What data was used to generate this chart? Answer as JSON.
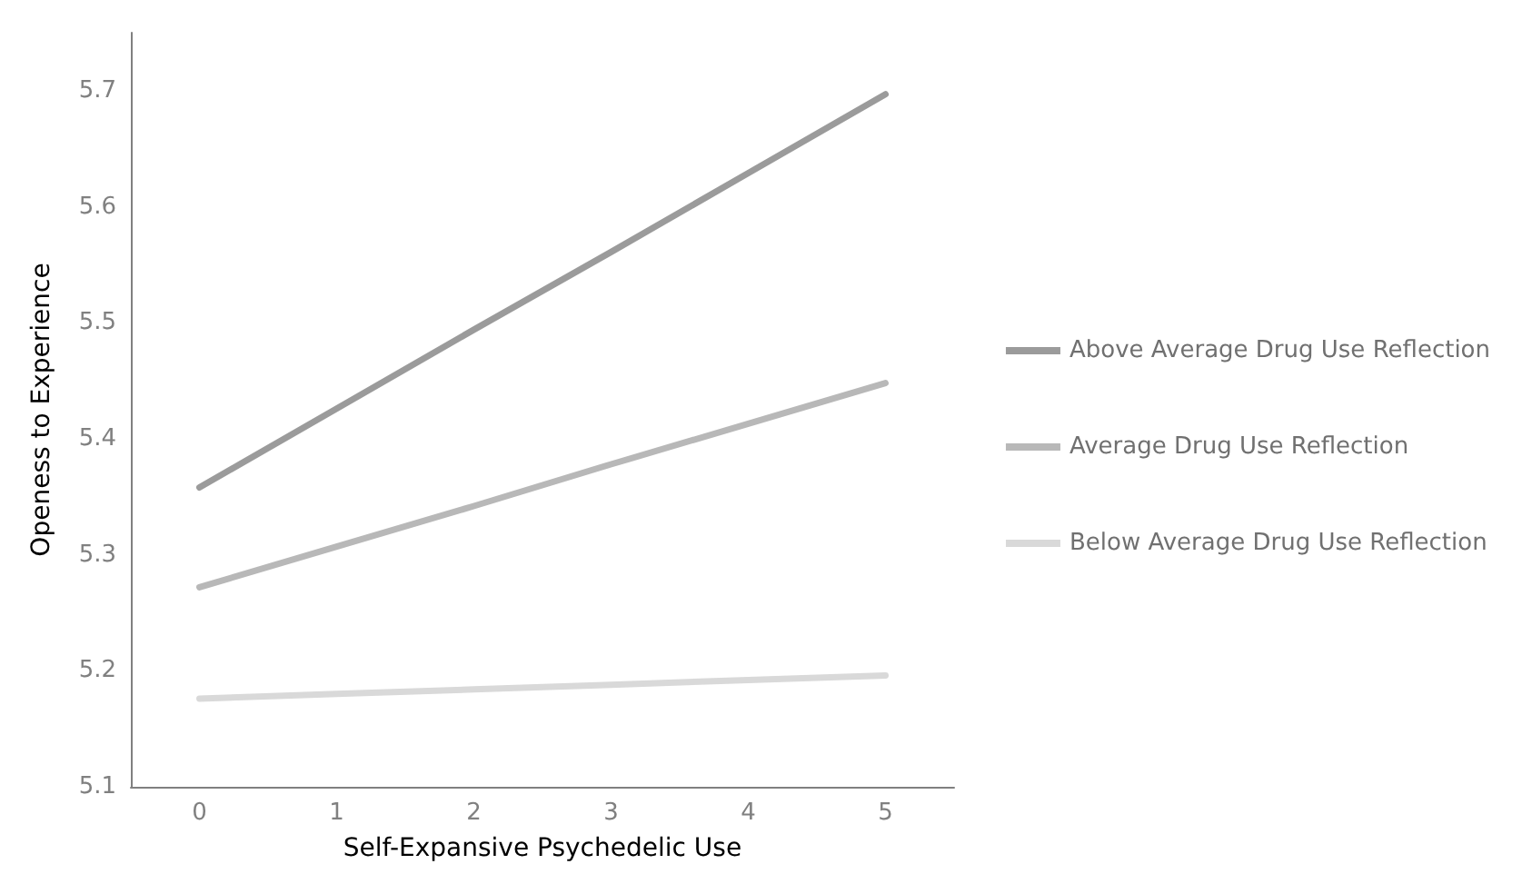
{
  "chart_data": {
    "type": "line",
    "xlabel": "Self-Expansive Psychedelic Use",
    "ylabel": "Openess to Experience",
    "categories": [
      "0",
      "1",
      "2",
      "3",
      "4",
      "5"
    ],
    "series": [
      {
        "name": "Above Average Drug Use Reflection",
        "color": "#9b9b9b",
        "values": [
          5.358,
          5.426,
          5.494,
          5.561,
          5.629,
          5.697
        ]
      },
      {
        "name": "Average Drug Use Reflection",
        "color": "#b8b8b8",
        "values": [
          5.272,
          5.307,
          5.342,
          5.378,
          5.413,
          5.448
        ]
      },
      {
        "name": "Below Average Drug Use Reflection",
        "color": "#d9d9d9",
        "values": [
          5.176,
          5.18,
          5.184,
          5.188,
          5.192,
          5.196
        ]
      }
    ],
    "ylim": [
      5.1,
      5.75
    ],
    "yticks": [
      5.1,
      5.2,
      5.3,
      5.4,
      5.5,
      5.6,
      5.7
    ],
    "grid": false,
    "legend": "right",
    "marker": "none",
    "line_style": "solid"
  }
}
